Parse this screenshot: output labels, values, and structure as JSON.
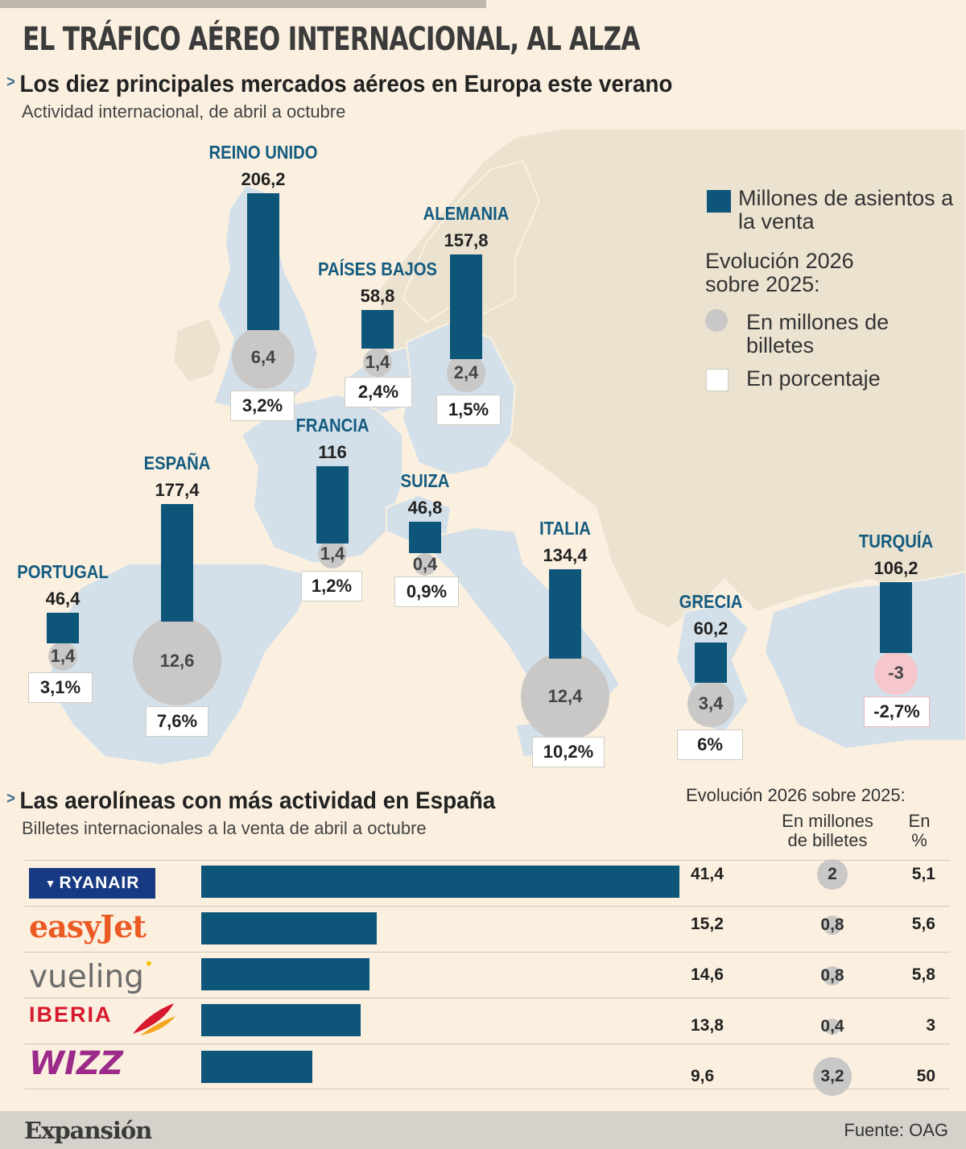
{
  "title": "EL TRÁFICO AÉREO INTERNACIONAL, AL ALZA",
  "section1": {
    "marker": ">",
    "title": "Los diez principales mercados aéreos en Europa este verano",
    "subtitle": "Actividad internacional, de abril a octubre"
  },
  "legend": {
    "seats": "Millones de asientos a la venta",
    "evolution": "Evolución 2026 sobre 2025:",
    "millions": "En millones de billetes",
    "percent": "En porcentaje"
  },
  "colors": {
    "bar": "#0e5679",
    "label": "#145b80",
    "circle": "#c9c8c7",
    "circle_negative": "#f5c7cd",
    "map_land": "#ebe3d0",
    "map_focus": "#d3e0ea"
  },
  "chart_data": [
    {
      "type": "bar",
      "title": "Los diez principales mercados aéreos en Europa este verano",
      "subtitle": "Actividad internacional, de abril a octubre",
      "categories": [
        "REINO UNIDO",
        "ALEMANIA",
        "PAÍSES BAJOS",
        "FRANCIA",
        "ESPAÑA",
        "SUIZA",
        "PORTUGAL",
        "ITALIA",
        "GRECIA",
        "TURQUÍA"
      ],
      "series": [
        {
          "name": "Millones de asientos a la venta",
          "values": [
            206.2,
            157.8,
            58.8,
            116,
            177.4,
            46.8,
            46.4,
            134.4,
            60.2,
            106.2
          ],
          "labels": [
            "206,2",
            "157,8",
            "58,8",
            "116",
            "177,4",
            "46,8",
            "46,4",
            "134,4",
            "60,2",
            "106,2"
          ]
        },
        {
          "name": "En millones de billetes",
          "values": [
            6.4,
            2.4,
            1.4,
            1.4,
            12.6,
            0.4,
            1.4,
            12.4,
            3.4,
            -3
          ],
          "labels": [
            "6,4",
            "2,4",
            "1,4",
            "1,4",
            "12,6",
            "0,4",
            "1,4",
            "12,4",
            "3,4",
            "-3"
          ]
        },
        {
          "name": "En porcentaje",
          "values": [
            3.2,
            1.5,
            2.4,
            1.2,
            7.6,
            0.9,
            3.1,
            10.2,
            6,
            -2.7
          ],
          "labels": [
            "3,2%",
            "1,5%",
            "2,4%",
            "1,2%",
            "7,6%",
            "0,9%",
            "3,1%",
            "10,2%",
            "6%",
            "-2,7%"
          ]
        }
      ]
    },
    {
      "type": "bar",
      "title": "Las aerolíneas con más actividad en España",
      "subtitle": "Billetes internacionales a la venta de abril a octubre",
      "categories": [
        "RYANAIR",
        "easyJet",
        "vueling",
        "IBERIA",
        "WIZZ"
      ],
      "series": [
        {
          "name": "Billetes internacionales a la venta",
          "values": [
            41.4,
            15.2,
            14.6,
            13.8,
            9.6
          ],
          "labels": [
            "41,4",
            "15,2",
            "14,6",
            "13,8",
            "9,6"
          ]
        },
        {
          "name": "En millones de billetes",
          "values": [
            2,
            0.8,
            0.8,
            0.4,
            3.2
          ],
          "labels": [
            "2",
            "0,8",
            "0,8",
            "0,4",
            "3,2"
          ]
        },
        {
          "name": "En %",
          "values": [
            5.1,
            5.6,
            5.8,
            3,
            50
          ],
          "labels": [
            "5,1",
            "5,6",
            "5,8",
            "3",
            "50"
          ]
        }
      ]
    }
  ],
  "section2": {
    "marker": ">",
    "title": "Las aerolíneas con más actividad en España",
    "subtitle": "Billetes internacionales a la venta de abril a octubre",
    "evolution_header": "Evolución 2026 sobre 2025:",
    "col_millions": "En millones de billetes",
    "col_percent": "En %"
  },
  "footer": {
    "brand": "Expansión",
    "source": "Fuente: OAG"
  }
}
